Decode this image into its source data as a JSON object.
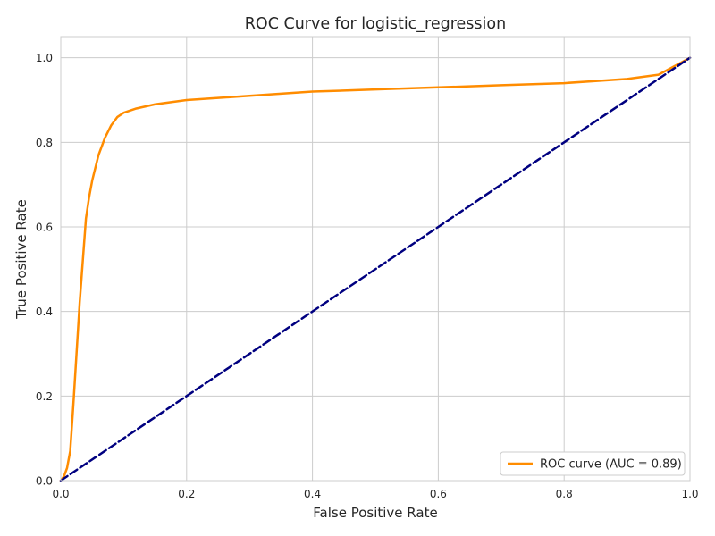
{
  "chart_data": {
    "type": "line",
    "title": "ROC Curve for logistic_regression",
    "xlabel": "False Positive Rate",
    "ylabel": "True Positive Rate",
    "xlim": [
      0.0,
      1.0
    ],
    "ylim": [
      0.0,
      1.05
    ],
    "xticks": [
      "0.0",
      "0.2",
      "0.4",
      "0.6",
      "0.8",
      "1.0"
    ],
    "yticks": [
      "0.0",
      "0.2",
      "0.4",
      "0.6",
      "0.8",
      "1.0"
    ],
    "grid": true,
    "legend_position": "lower-right",
    "series": [
      {
        "name": "ROC curve (AUC = 0.89)",
        "color": "#ff8c00",
        "style": "solid",
        "x": [
          0.0,
          0.005,
          0.01,
          0.015,
          0.02,
          0.025,
          0.03,
          0.035,
          0.04,
          0.045,
          0.05,
          0.055,
          0.06,
          0.065,
          0.07,
          0.08,
          0.09,
          0.1,
          0.12,
          0.15,
          0.2,
          0.25,
          0.3,
          0.35,
          0.4,
          0.5,
          0.6,
          0.7,
          0.8,
          0.85,
          0.9,
          0.95,
          1.0
        ],
        "y": [
          0.0,
          0.01,
          0.03,
          0.07,
          0.18,
          0.3,
          0.42,
          0.52,
          0.62,
          0.67,
          0.71,
          0.74,
          0.77,
          0.79,
          0.81,
          0.84,
          0.86,
          0.87,
          0.88,
          0.89,
          0.9,
          0.905,
          0.91,
          0.915,
          0.92,
          0.925,
          0.93,
          0.935,
          0.94,
          0.945,
          0.95,
          0.96,
          1.0
        ]
      },
      {
        "name": "",
        "color": "#000080",
        "style": "dashed",
        "x": [
          0.0,
          1.0
        ],
        "y": [
          0.0,
          1.0
        ]
      }
    ]
  }
}
